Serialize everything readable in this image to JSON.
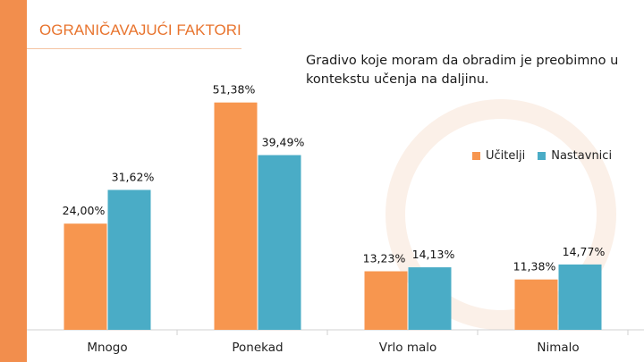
{
  "header": {
    "title": "OGRANIČAVAJUĆI FAKTORI"
  },
  "colors": {
    "accent": "#f28e4d",
    "title": "#e8742e",
    "ucitelji": "#f7964f",
    "nastavnici": "#4aacc6"
  },
  "chart_data": {
    "type": "bar",
    "title": "Gradivo koje moram da obradim je preobimno u kontekstu učenja na daljinu.",
    "categories": [
      "Mnogo",
      "Ponekad",
      "Vrlo malo",
      "Nimalo"
    ],
    "series": [
      {
        "name": "Učitelji",
        "values": [
          24.0,
          51.38,
          13.23,
          11.38
        ],
        "labels": [
          "24,00%",
          "51,38%",
          "13,23%",
          "11,38%"
        ]
      },
      {
        "name": "Nastavnici",
        "values": [
          31.62,
          39.49,
          14.13,
          14.77
        ],
        "labels": [
          "31,62%",
          "39,49%",
          "14,13%",
          "14,77%"
        ]
      }
    ],
    "ylim": [
      0,
      55
    ],
    "grid": false,
    "legend_position": "right"
  }
}
